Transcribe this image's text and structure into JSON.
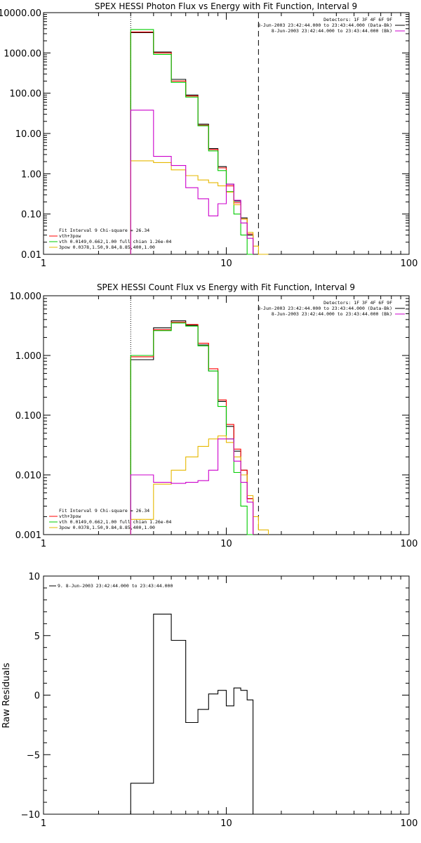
{
  "chart_data": [
    {
      "type": "line",
      "title": "SPEX HESSI Photon Flux vs Energy with Fit Function, Interval 9",
      "xscale": "log",
      "yscale": "log",
      "xlim": [
        1,
        100
      ],
      "ylim": [
        0.01,
        10000
      ],
      "x_tick_labels": [
        "1",
        "10",
        "100"
      ],
      "y_tick_labels": [
        "0.01",
        "0.10",
        "1.00",
        "10.00",
        "100.00",
        "1000.00",
        "10000.00"
      ],
      "vlines": [
        {
          "x": 3,
          "style": "dotted"
        },
        {
          "x": 15,
          "style": "dashed"
        }
      ],
      "legend_top_right": [
        "Detectors: 1F 3F 4F 6F 9F",
        "8-Jun-2003 23:42:44.000 to 23:43:44.000 (Data-Bk)",
        "8-Jun-2003 23:42:44.000 to 23:43:44.000 (Bk)"
      ],
      "legend_bottom_left": [
        "Fit Interval 9   Chi-square = 26.34",
        "vth+3pow",
        "vth 0.0149,0.662,1.00  full chian 1.26e-04",
        "3pow 0.0378,1.50,9.84,8.85,400,1.00"
      ],
      "bin_edges": [
        3,
        4,
        5,
        6,
        7,
        8,
        9,
        10,
        11,
        12,
        13,
        14,
        15,
        17,
        19
      ],
      "series": [
        {
          "label_ref": "Data-Bk",
          "color": "#000000",
          "values": [
            3200,
            1050,
            220,
            90,
            17,
            4.2,
            1.5,
            0.55,
            0.21,
            0.08,
            0.03,
            null,
            null,
            null
          ]
        },
        {
          "label_ref": "vth+3pow",
          "color": "#ff0000",
          "values": [
            3300,
            1000,
            200,
            85,
            16,
            4.0,
            1.4,
            0.5,
            0.19,
            0.075,
            0.032,
            null,
            null,
            null
          ]
        },
        {
          "label_ref": "vth",
          "color": "#00cc00",
          "values": [
            3800,
            920,
            185,
            80,
            15.5,
            3.7,
            1.2,
            0.36,
            0.1,
            0.03,
            0.01,
            null,
            null,
            null
          ]
        },
        {
          "label_ref": "3pow",
          "color": "#e6b800",
          "values": [
            2.1,
            1.9,
            1.25,
            0.9,
            0.7,
            0.6,
            0.5,
            0.35,
            0.17,
            0.075,
            0.035,
            0.016,
            0.01,
            null
          ]
        },
        {
          "label_ref": "Bk",
          "color": "#cc00cc",
          "values": [
            38,
            2.7,
            1.6,
            0.45,
            0.24,
            0.09,
            0.18,
            0.55,
            0.22,
            0.06,
            0.025,
            null,
            null,
            null
          ]
        }
      ]
    },
    {
      "type": "line",
      "title": "SPEX HESSI Count Flux vs Energy with Fit Function, Interval 9",
      "xscale": "log",
      "yscale": "log",
      "xlim": [
        1,
        100
      ],
      "ylim": [
        0.001,
        10
      ],
      "x_tick_labels": [
        "1",
        "10",
        "100"
      ],
      "y_tick_labels": [
        "0.001",
        "0.010",
        "0.100",
        "1.000",
        "10.000"
      ],
      "vlines": [
        {
          "x": 3,
          "style": "dotted"
        },
        {
          "x": 15,
          "style": "dashed"
        }
      ],
      "legend_top_right": [
        "Detectors: 1F 3F 4F 6F 9F",
        "8-Jun-2003 23:42:44.000 to 23:43:44.000 (Data-Bk)",
        "8-Jun-2003 23:42:44.000 to 23:43:44.000 (Bk)"
      ],
      "legend_bottom_left": [
        "Fit Interval 9   Chi-square = 26.34",
        "vth+3pow",
        "vth 0.0149,0.662,1.00  full chian 1.26e-04",
        "3pow 0.0378,1.50,9.84,8.85,400,1.00"
      ],
      "bin_edges": [
        3,
        4,
        5,
        6,
        7,
        8,
        9,
        10,
        11,
        12,
        13,
        14,
        15,
        17,
        19
      ],
      "series": [
        {
          "label_ref": "Data-Bk",
          "color": "#000000",
          "values": [
            0.85,
            2.9,
            3.8,
            3.2,
            1.5,
            0.55,
            0.17,
            0.065,
            0.025,
            0.012,
            0.004,
            null,
            null,
            null
          ]
        },
        {
          "label_ref": "vth+3pow",
          "color": "#ff0000",
          "values": [
            0.95,
            2.7,
            3.6,
            3.3,
            1.6,
            0.6,
            0.18,
            0.07,
            0.027,
            0.012,
            0.004,
            null,
            null,
            null
          ]
        },
        {
          "label_ref": "vth",
          "color": "#00cc00",
          "values": [
            1.0,
            2.6,
            3.5,
            3.1,
            1.45,
            0.55,
            0.14,
            0.04,
            0.011,
            0.003,
            0.001,
            null,
            null,
            null
          ]
        },
        {
          "label_ref": "3pow",
          "color": "#e6b800",
          "values": [
            0.0018,
            0.007,
            0.012,
            0.02,
            0.03,
            0.04,
            0.045,
            0.035,
            0.02,
            0.01,
            0.0045,
            0.002,
            0.0012,
            null
          ]
        },
        {
          "label_ref": "Bk",
          "color": "#cc00cc",
          "values": [
            0.01,
            0.0075,
            0.0072,
            0.0075,
            0.008,
            0.012,
            0.04,
            0.04,
            0.017,
            0.0075,
            0.0035,
            null,
            null,
            null
          ]
        }
      ]
    },
    {
      "type": "line",
      "title": "",
      "xscale": "log",
      "yscale": "linear",
      "xlim": [
        1,
        100
      ],
      "ylim": [
        -10,
        10
      ],
      "x_tick_labels": [
        "1",
        "10",
        "100"
      ],
      "y_tick_labels": [
        "-10",
        "-5",
        "0",
        "5",
        "10"
      ],
      "ylabel": "Raw Residuals",
      "legend_top_left": [
        "9. 8-Jun-2003 23:42:44.000 to 23:43:44.000"
      ],
      "bin_edges": [
        3,
        4,
        5,
        6,
        7,
        8,
        9,
        10,
        11,
        12,
        13,
        14,
        15
      ],
      "series": [
        {
          "label_ref": "residual",
          "color": "#000000",
          "values": [
            -7.4,
            6.8,
            4.6,
            -2.3,
            -1.2,
            0.1,
            0.4,
            -0.9,
            0.6,
            0.4,
            -0.4,
            null
          ]
        }
      ]
    }
  ]
}
